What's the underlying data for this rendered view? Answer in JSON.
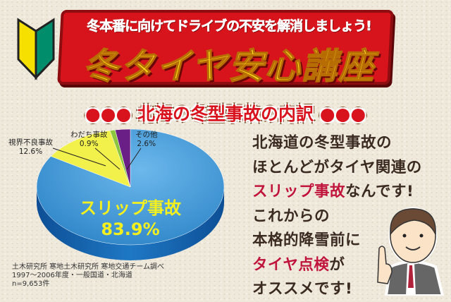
{
  "banner": {
    "subtitle": "冬本番に向けてドライブの不安を解消しましょう!",
    "title": "冬タイヤ安心講座"
  },
  "heading": "●●● 北海の冬型事故の内訳 ●●●",
  "chart_data": {
    "type": "pie",
    "title": "北海の冬型事故の内訳",
    "categories": [
      "スリップ事故",
      "視界不良事故",
      "わだち事故",
      "その他"
    ],
    "values": [
      83.9,
      12.6,
      0.9,
      2.6
    ],
    "labels": [
      "83.9%",
      "12.6%",
      "0.9%",
      "2.6%"
    ],
    "colors": [
      "#3d95d6",
      "#f2f04a",
      "#8cc63f",
      "#6a1f86"
    ],
    "style": "3d"
  },
  "source": {
    "line1": "土木研究所 寒地土木研究所 寒地交通チーム調べ",
    "line2": "1997～2006年度・一般国道・北海道",
    "line3": "n=9,653件"
  },
  "message": {
    "line1": "北海道の冬型事故の",
    "line2": "ほとんどがタイヤ関連の",
    "line3_highlight": "スリップ事故",
    "line3_rest": "なんです!",
    "line4": "これからの",
    "line5": "本格的降雪前に",
    "line6_highlight": "タイヤ点検",
    "line6_rest": "が",
    "line7": "オススメです!"
  }
}
